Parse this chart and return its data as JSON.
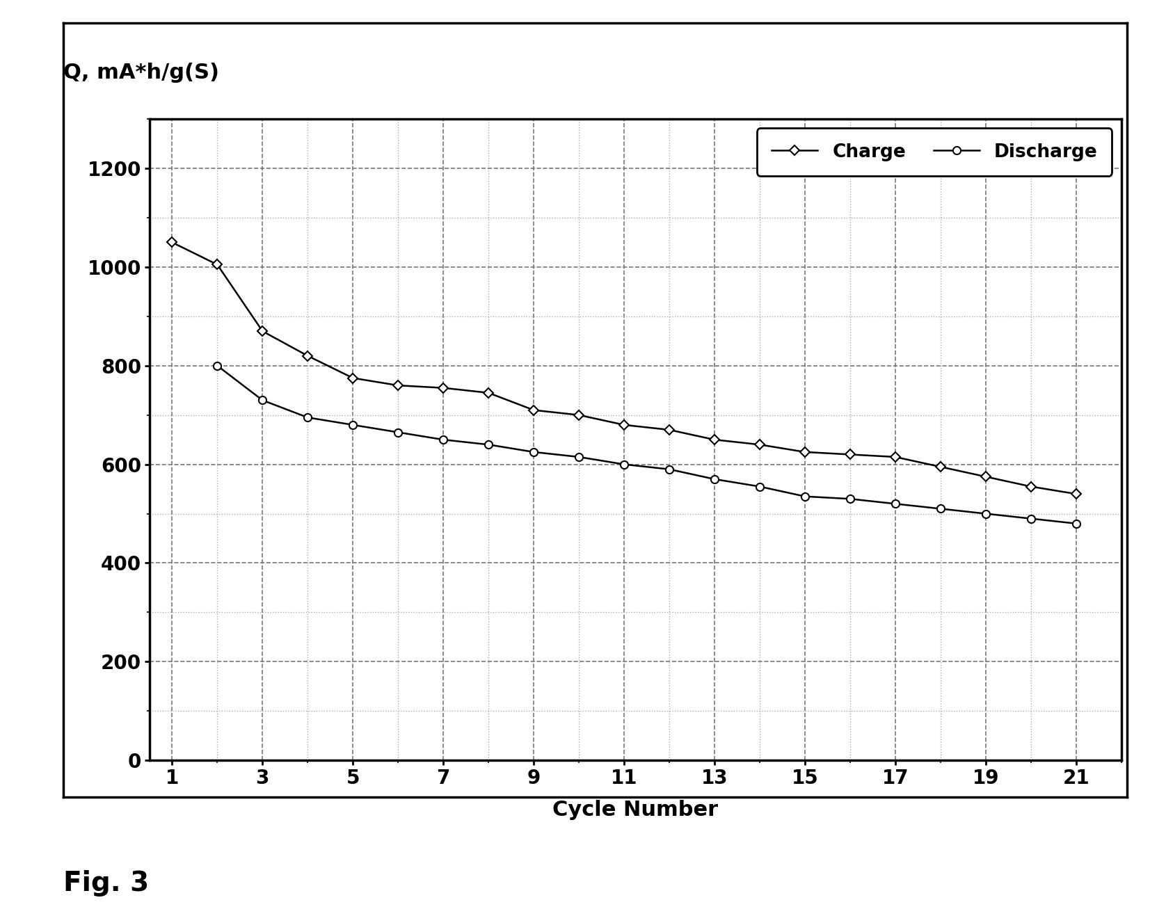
{
  "charge_x": [
    1,
    2,
    3,
    4,
    5,
    6,
    7,
    8,
    9,
    10,
    11,
    12,
    13,
    14,
    15,
    16,
    17,
    18,
    19,
    20,
    21
  ],
  "charge_y": [
    1050,
    1005,
    870,
    820,
    775,
    760,
    755,
    745,
    710,
    700,
    680,
    670,
    650,
    640,
    625,
    620,
    615,
    595,
    575,
    555,
    540
  ],
  "discharge_x": [
    2,
    3,
    4,
    5,
    6,
    7,
    8,
    9,
    10,
    11,
    12,
    13,
    14,
    15,
    16,
    17,
    18,
    19,
    20,
    21
  ],
  "discharge_y": [
    800,
    730,
    695,
    680,
    665,
    650,
    640,
    625,
    615,
    600,
    590,
    570,
    555,
    535,
    530,
    520,
    510,
    500,
    490,
    480
  ],
  "ylabel_text": "Q, mA*h/g(S)",
  "xlabel": "Cycle Number",
  "yticks": [
    0,
    200,
    400,
    600,
    800,
    1000,
    1200
  ],
  "xticks": [
    1,
    3,
    5,
    7,
    9,
    11,
    13,
    15,
    17,
    19,
    21
  ],
  "ylim": [
    0,
    1300
  ],
  "xlim": [
    0.5,
    22
  ],
  "charge_label": "Charge",
  "discharge_label": "Discharge",
  "fig_label": "Fig. 3",
  "line_color": "#000000",
  "bg_color": "#ffffff",
  "grid_major_color": "#777777",
  "grid_minor_color": "#aaaaaa"
}
